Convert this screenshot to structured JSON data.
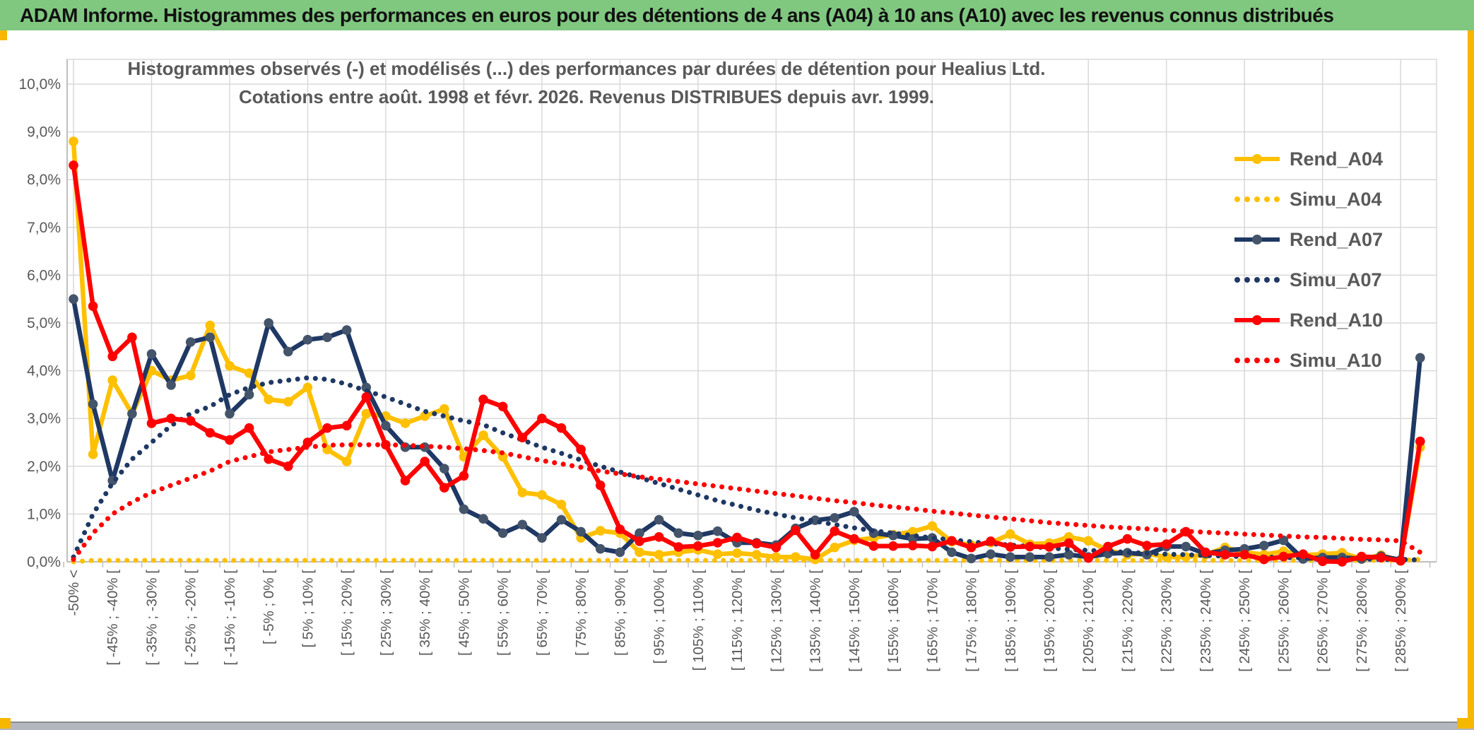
{
  "header": {
    "title": "ADAM Informe. Histogrammes des performances en euros pour des détentions de 4 ans (A04) à 10 ans (A10) avec les revenus connus distribués",
    "background_color": "#80C780",
    "accent_border_color": "#F5B700",
    "bottom_bar_color": "#B3B8C0"
  },
  "chart_data": {
    "type": "line",
    "title": "Histogrammes observés (-) et modélisés (...) des performances par durées de détention pour Healius Ltd.",
    "subtitle": "Cotations entre août. 1998 et févr. 2026. Revenus DISTRIBUES depuis avr. 1999.",
    "ylabel": "",
    "xlabel": "",
    "ylim": [
      0,
      10
    ],
    "ytick_labels": [
      "0,0%",
      "1,0%",
      "2,0%",
      "3,0%",
      "4,0%",
      "5,0%",
      "6,0%",
      "7,0%",
      "8,0%",
      "9,0%",
      "10,0%"
    ],
    "grid": true,
    "legend_position": "right",
    "x_bins_total": 70,
    "x_labels_note": "labels shown on every second bin starting at bin 1",
    "x_tick_labels": [
      "-50% <",
      "[ -45% ; -40% [",
      "[ -35% ; -30% [",
      "[ -25% ; -20% [",
      "[ -15% ; -10% [",
      "[ -5% ; 0% [",
      "[ 5% ; 10% [",
      "[ 15% ; 20% [",
      "[ 25% ; 30% [",
      "[ 35% ; 40% [",
      "[ 45% ; 50% [",
      "[ 55% ; 60% [",
      "[ 65% ; 70% [",
      "[ 75% ; 80% [",
      "[ 85% ; 90% [",
      "[ 95% ; 100% [",
      "[ 105% ; 110% [",
      "[ 115% ; 120% [",
      "[ 125% ; 130% [",
      "[ 135% ; 140% [",
      "[ 145% ; 150% [",
      "[ 155% ; 160% [",
      "[ 165% ; 170% [",
      "[ 175% ; 180% [",
      "[ 185% ; 190% [",
      "[ 195% ; 200% [",
      "[ 205% ; 210% [",
      "[ 215% ; 220% [",
      "[ 225% ; 230% [",
      "[ 235% ; 240% [",
      "[ 245% ; 250% [",
      "[ 255% ; 260% [",
      "[ 265% ; 270% [",
      "[ 275% ; 280% [",
      "[ 285% ; 290% ["
    ],
    "series": [
      {
        "name": "Rend_A04",
        "color": "#FFC000",
        "marker_color": "#FFC000",
        "style": "solid",
        "marker": true,
        "values": [
          8.8,
          2.25,
          3.8,
          3.1,
          4.0,
          3.8,
          3.9,
          4.95,
          4.1,
          3.95,
          3.4,
          3.35,
          3.65,
          2.35,
          2.1,
          3.1,
          3.05,
          2.9,
          3.05,
          3.2,
          2.2,
          2.65,
          2.2,
          1.45,
          1.4,
          1.2,
          0.5,
          0.65,
          0.6,
          0.2,
          0.15,
          0.2,
          0.25,
          0.16,
          0.18,
          0.15,
          0.1,
          0.1,
          0.05,
          0.3,
          0.45,
          0.5,
          0.57,
          0.63,
          0.75,
          0.42,
          0.35,
          0.4,
          0.58,
          0.37,
          0.39,
          0.52,
          0.44,
          0.24,
          0.15,
          0.17,
          0.1,
          0.1,
          0.15,
          0.3,
          0.2,
          0.15,
          0.22,
          0.14,
          0.16,
          0.19,
          0.06,
          0.14,
          0.02,
          2.4
        ]
      },
      {
        "name": "Simu_A04",
        "color": "#FFC000",
        "marker_color": "#FFC000",
        "style": "dotted",
        "marker": false,
        "values": [
          0.0,
          0.03,
          0.03,
          0.03,
          0.03,
          0.03,
          0.03,
          0.03,
          0.03,
          0.03,
          0.03,
          0.03,
          0.03,
          0.03,
          0.03,
          0.03,
          0.03,
          0.03,
          0.03,
          0.03,
          0.03,
          0.03,
          0.03,
          0.03,
          0.03,
          0.03,
          0.03,
          0.03,
          0.03,
          0.03,
          0.03,
          0.03,
          0.03,
          0.03,
          0.03,
          0.03,
          0.03,
          0.03,
          0.03,
          0.03,
          0.03,
          0.03,
          0.03,
          0.03,
          0.03,
          0.03,
          0.03,
          0.03,
          0.03,
          0.03,
          0.03,
          0.03,
          0.03,
          0.03,
          0.03,
          0.03,
          0.03,
          0.03,
          0.03,
          0.03,
          0.03,
          0.03,
          0.03,
          0.03,
          0.03,
          0.03,
          0.03,
          0.03,
          0.03,
          0.05
        ]
      },
      {
        "name": "Rend_A07",
        "color": "#1F3864",
        "marker_color": "#44546A",
        "style": "solid",
        "marker": true,
        "values": [
          5.5,
          3.3,
          1.7,
          3.1,
          4.35,
          3.7,
          4.6,
          4.7,
          3.1,
          3.5,
          5.0,
          4.4,
          4.65,
          4.7,
          4.85,
          3.65,
          2.85,
          2.4,
          2.4,
          1.95,
          1.1,
          0.9,
          0.6,
          0.78,
          0.5,
          0.88,
          0.63,
          0.27,
          0.2,
          0.6,
          0.88,
          0.6,
          0.55,
          0.64,
          0.4,
          0.4,
          0.35,
          0.7,
          0.87,
          0.92,
          1.05,
          0.6,
          0.55,
          0.48,
          0.5,
          0.2,
          0.07,
          0.16,
          0.1,
          0.1,
          0.1,
          0.15,
          0.1,
          0.17,
          0.19,
          0.15,
          0.32,
          0.32,
          0.17,
          0.24,
          0.27,
          0.34,
          0.45,
          0.06,
          0.09,
          0.09,
          0.06,
          0.12,
          0.04,
          4.27
        ]
      },
      {
        "name": "Simu_A07",
        "color": "#1F3864",
        "marker_color": "#1F3864",
        "style": "dotted",
        "marker": false,
        "values": [
          0.1,
          1.0,
          1.65,
          2.15,
          2.5,
          2.85,
          3.1,
          3.25,
          3.5,
          3.65,
          3.75,
          3.8,
          3.85,
          3.82,
          3.72,
          3.58,
          3.45,
          3.3,
          3.15,
          3.05,
          2.95,
          2.87,
          2.7,
          2.55,
          2.4,
          2.27,
          2.13,
          2.0,
          1.88,
          1.76,
          1.64,
          1.52,
          1.4,
          1.28,
          1.18,
          1.08,
          1.0,
          0.92,
          0.85,
          0.78,
          0.71,
          0.65,
          0.6,
          0.55,
          0.5,
          0.46,
          0.42,
          0.38,
          0.35,
          0.32,
          0.29,
          0.26,
          0.24,
          0.22,
          0.2,
          0.18,
          0.16,
          0.15,
          0.13,
          0.12,
          0.11,
          0.1,
          0.09,
          0.08,
          0.07,
          0.07,
          0.06,
          0.05,
          0.05,
          0.04
        ]
      },
      {
        "name": "Rend_A10",
        "color": "#FF0000",
        "marker_color": "#FF0000",
        "style": "solid",
        "marker": true,
        "values": [
          8.3,
          5.35,
          4.3,
          4.7,
          2.9,
          3.0,
          2.95,
          2.7,
          2.55,
          2.8,
          2.15,
          2.0,
          2.5,
          2.8,
          2.85,
          3.45,
          2.45,
          1.7,
          2.1,
          1.55,
          1.8,
          3.4,
          3.25,
          2.6,
          3.0,
          2.8,
          2.35,
          1.6,
          0.68,
          0.43,
          0.52,
          0.31,
          0.33,
          0.4,
          0.51,
          0.38,
          0.3,
          0.66,
          0.15,
          0.64,
          0.48,
          0.33,
          0.33,
          0.34,
          0.32,
          0.44,
          0.3,
          0.43,
          0.31,
          0.32,
          0.31,
          0.39,
          0.08,
          0.32,
          0.48,
          0.34,
          0.37,
          0.63,
          0.2,
          0.15,
          0.15,
          0.05,
          0.11,
          0.16,
          0.01,
          0.0,
          0.11,
          0.09,
          0.02,
          2.52
        ]
      },
      {
        "name": "Simu_A10",
        "color": "#FF0000",
        "marker_color": "#FF0000",
        "style": "dotted",
        "marker": false,
        "values": [
          0.05,
          0.6,
          1.0,
          1.25,
          1.45,
          1.6,
          1.75,
          1.9,
          2.1,
          2.2,
          2.3,
          2.35,
          2.4,
          2.44,
          2.45,
          2.45,
          2.45,
          2.44,
          2.42,
          2.4,
          2.37,
          2.33,
          2.28,
          2.2,
          2.12,
          2.05,
          1.98,
          1.9,
          1.84,
          1.78,
          1.73,
          1.68,
          1.63,
          1.58,
          1.53,
          1.48,
          1.43,
          1.38,
          1.33,
          1.28,
          1.24,
          1.19,
          1.15,
          1.11,
          1.06,
          1.02,
          0.98,
          0.94,
          0.9,
          0.86,
          0.82,
          0.79,
          0.76,
          0.73,
          0.71,
          0.69,
          0.66,
          0.64,
          0.62,
          0.6,
          0.58,
          0.56,
          0.54,
          0.52,
          0.51,
          0.49,
          0.47,
          0.46,
          0.44,
          0.2
        ]
      }
    ],
    "colors": {
      "grid": "#D9D9D9",
      "axis": "#BFBFBF",
      "tick_text": "#595959",
      "title_text": "#595959"
    }
  }
}
